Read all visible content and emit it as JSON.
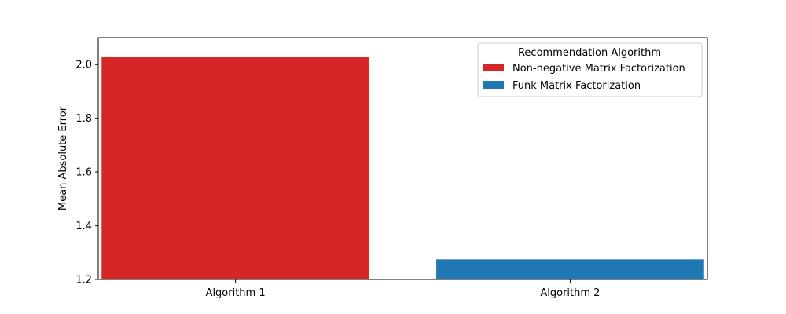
{
  "chart_data": {
    "type": "bar",
    "title": "",
    "xlabel": "",
    "ylabel": "Mean Absolute Error",
    "ylim": [
      1.2,
      2.1
    ],
    "yticks": [
      1.2,
      1.4,
      1.6,
      1.8,
      2.0
    ],
    "ytick_labels": [
      "1.2",
      "1.4",
      "1.6",
      "1.8",
      "2.0"
    ],
    "categories": [
      "Algorithm 1",
      "Algorithm 2"
    ],
    "series": [
      {
        "name": "Non-negative Matrix Factorization",
        "category": "Algorithm 1",
        "value": 2.03,
        "color": "#d62728"
      },
      {
        "name": "Funk Matrix Factorization",
        "category": "Algorithm 2",
        "value": 1.275,
        "color": "#1f77b4"
      }
    ],
    "legend": {
      "title": "Recommendation Algorithm",
      "placement": "top-right"
    },
    "grid": false
  }
}
